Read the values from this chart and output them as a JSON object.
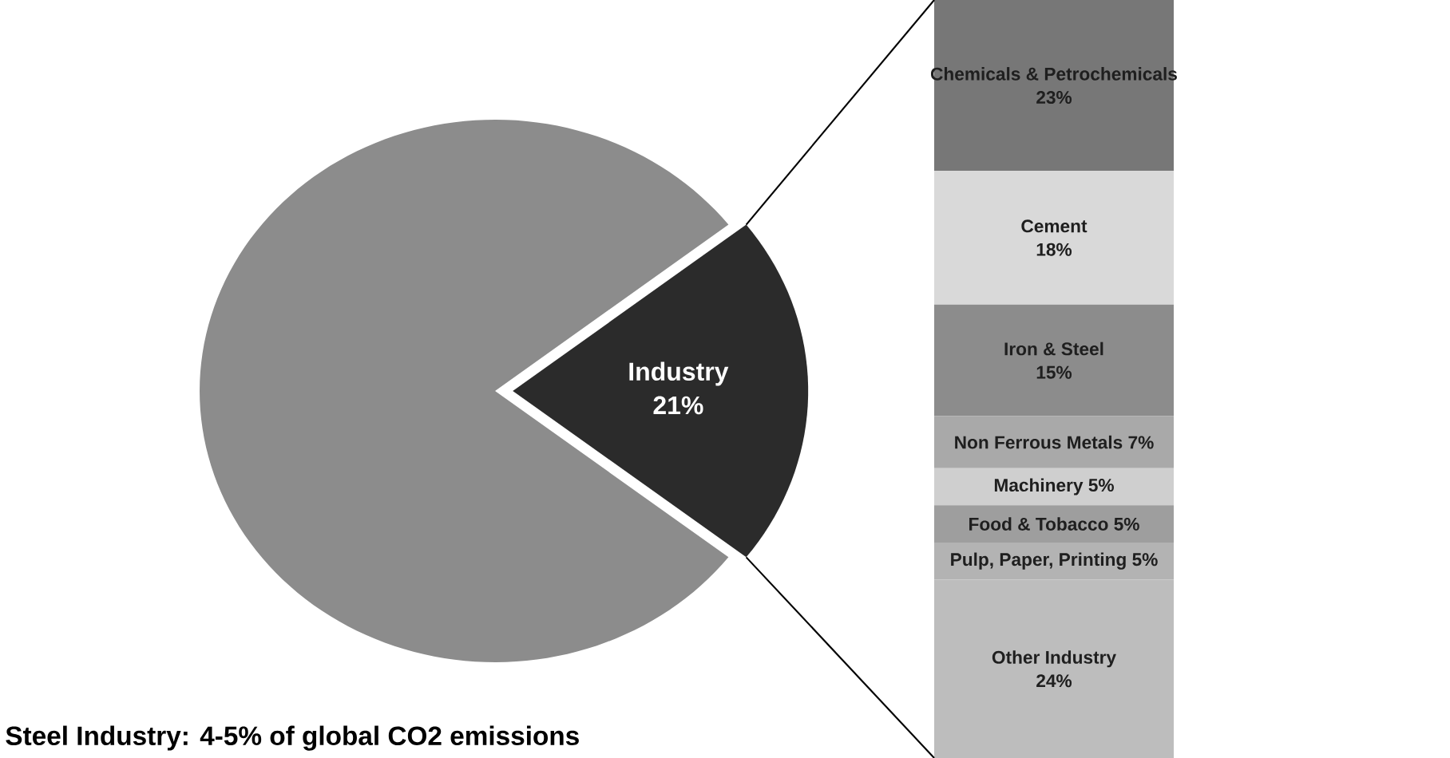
{
  "chart_data": [
    {
      "type": "pie",
      "categories": [
        null,
        "Industry"
      ],
      "values": [
        79,
        21
      ],
      "colors": [
        "#8c8c8c",
        "#2b2b2b"
      ],
      "value_labels": [
        null,
        "21%"
      ],
      "annotations": [
        "Steel Industry: 4-5% of global CO2 emissions"
      ]
    },
    {
      "type": "bar",
      "stacked": true,
      "categories": [
        null
      ],
      "series": [
        {
          "name": "Other Industry",
          "color": "#bdbdbd",
          "values": [
            24
          ],
          "value_labels": [
            "24%"
          ]
        },
        {
          "name": "Pulp, Paper, Printing",
          "color": "#b3b3b3",
          "values": [
            5
          ],
          "value_labels": [
            "5%"
          ]
        },
        {
          "name": "Food & Tobacco",
          "color": "#9e9e9e",
          "values": [
            5
          ],
          "value_labels": [
            "5%"
          ]
        },
        {
          "name": "Machinery",
          "color": "#cfcfcf",
          "values": [
            5
          ],
          "value_labels": [
            "5%"
          ]
        },
        {
          "name": "Non Ferrous Metals",
          "color": "#a9a9a9",
          "values": [
            7
          ],
          "value_labels": [
            "7%"
          ]
        },
        {
          "name": "Iron & Steel",
          "color": "#8c8c8c",
          "values": [
            15
          ],
          "value_labels": [
            "15%"
          ]
        },
        {
          "name": "Cement",
          "color": "#d9d9d9",
          "values": [
            18
          ],
          "value_labels": [
            "18%"
          ]
        },
        {
          "name": "Chemicals & Petrochemicals",
          "color": "#777777",
          "values": [
            23
          ],
          "value_labels": [
            "23%"
          ]
        }
      ]
    }
  ]
}
